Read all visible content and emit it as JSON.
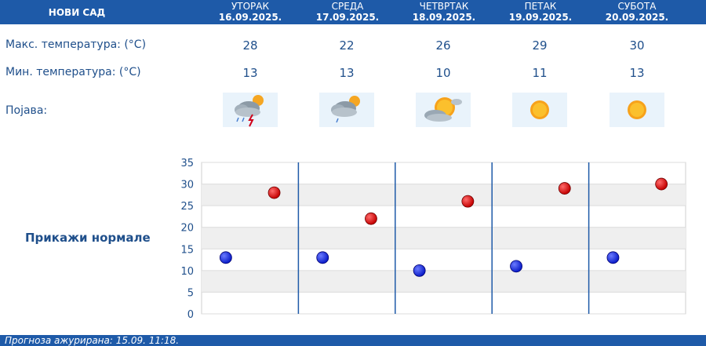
{
  "header": {
    "city": "НОВИ САД",
    "days": [
      {
        "name": "УТОРАК",
        "date": "16.09.2025."
      },
      {
        "name": "СРЕДА",
        "date": "17.09.2025."
      },
      {
        "name": "ЧЕТВРТАК",
        "date": "18.09.2025."
      },
      {
        "name": "ПЕТАК",
        "date": "19.09.2025."
      },
      {
        "name": "СУБОТА",
        "date": "20.09.2025."
      }
    ]
  },
  "rows": {
    "max_label": "Макс. температура: (°C)",
    "min_label": "Мин. температура: (°C)",
    "phenomenon_label": "Појава:"
  },
  "max_temps": [
    "28",
    "22",
    "26",
    "29",
    "30"
  ],
  "min_temps": [
    "13",
    "13",
    "10",
    "11",
    "13"
  ],
  "icons": [
    "thunderstorm-rain-icon",
    "cloudy-rain-icon",
    "partly-cloudy-icon",
    "sunny-icon",
    "sunny-icon"
  ],
  "normals_link": "Прикажи нормале",
  "footer": "Прогноза ажурирана:  15.09.  11:18.",
  "colors": {
    "accent": "#1e5aa8",
    "text": "#1f4f8b",
    "max_marker": "#c40000",
    "min_marker": "#0a1cc8"
  },
  "chart_data": {
    "type": "scatter",
    "categories": [
      "16.09.2025.",
      "17.09.2025.",
      "18.09.2025.",
      "19.09.2025.",
      "20.09.2025."
    ],
    "series": [
      {
        "values": [
          28,
          22,
          26,
          29,
          30
        ]
      },
      {
        "values": [
          13,
          13,
          10,
          11,
          13
        ]
      }
    ],
    "ylim": [
      0,
      35
    ],
    "yticks": [
      "0",
      "5",
      "10",
      "15",
      "20",
      "25",
      "30",
      "35"
    ],
    "grid": true
  }
}
